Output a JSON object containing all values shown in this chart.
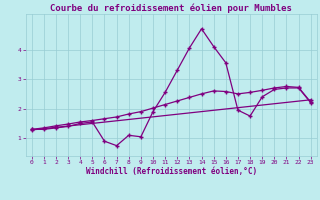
{
  "title": "Courbe du refroidissement éolien pour Mumbles",
  "xlabel": "Windchill (Refroidissement éolien,°C)",
  "background_color": "#c0ecee",
  "grid_color": "#98cdd4",
  "line_color": "#800080",
  "xlim": [
    -0.5,
    23.5
  ],
  "ylim": [
    0.4,
    5.2
  ],
  "x_ticks": [
    0,
    1,
    2,
    3,
    4,
    5,
    6,
    7,
    8,
    9,
    10,
    11,
    12,
    13,
    14,
    15,
    16,
    17,
    18,
    19,
    20,
    21,
    22,
    23
  ],
  "y_ticks": [
    1,
    2,
    3,
    4
  ],
  "series1_x": [
    0,
    1,
    2,
    3,
    4,
    5,
    6,
    7,
    8,
    9,
    10,
    11,
    12,
    13,
    14,
    15,
    16,
    17,
    18,
    19,
    20,
    21,
    22,
    23
  ],
  "series1_y": [
    1.3,
    1.3,
    1.35,
    1.4,
    1.5,
    1.55,
    0.9,
    0.75,
    1.1,
    1.05,
    1.9,
    2.55,
    3.3,
    4.05,
    4.7,
    4.1,
    3.55,
    1.95,
    1.75,
    2.4,
    2.65,
    2.7,
    2.7,
    2.2
  ],
  "series2_x": [
    0,
    1,
    2,
    3,
    4,
    5,
    6,
    7,
    8,
    9,
    10,
    11,
    12,
    13,
    14,
    15,
    16,
    17,
    18,
    19,
    20,
    21,
    22,
    23
  ],
  "series2_y": [
    1.3,
    1.35,
    1.42,
    1.48,
    1.55,
    1.6,
    1.66,
    1.72,
    1.82,
    1.9,
    2.02,
    2.14,
    2.26,
    2.38,
    2.5,
    2.6,
    2.58,
    2.5,
    2.55,
    2.62,
    2.7,
    2.75,
    2.72,
    2.22
  ],
  "series3_x": [
    0,
    23
  ],
  "series3_y": [
    1.28,
    2.3
  ],
  "marker": "+",
  "markersize": 3,
  "linewidth": 0.9,
  "title_fontsize": 6.5,
  "axis_fontsize": 5.5,
  "tick_fontsize": 4.5
}
